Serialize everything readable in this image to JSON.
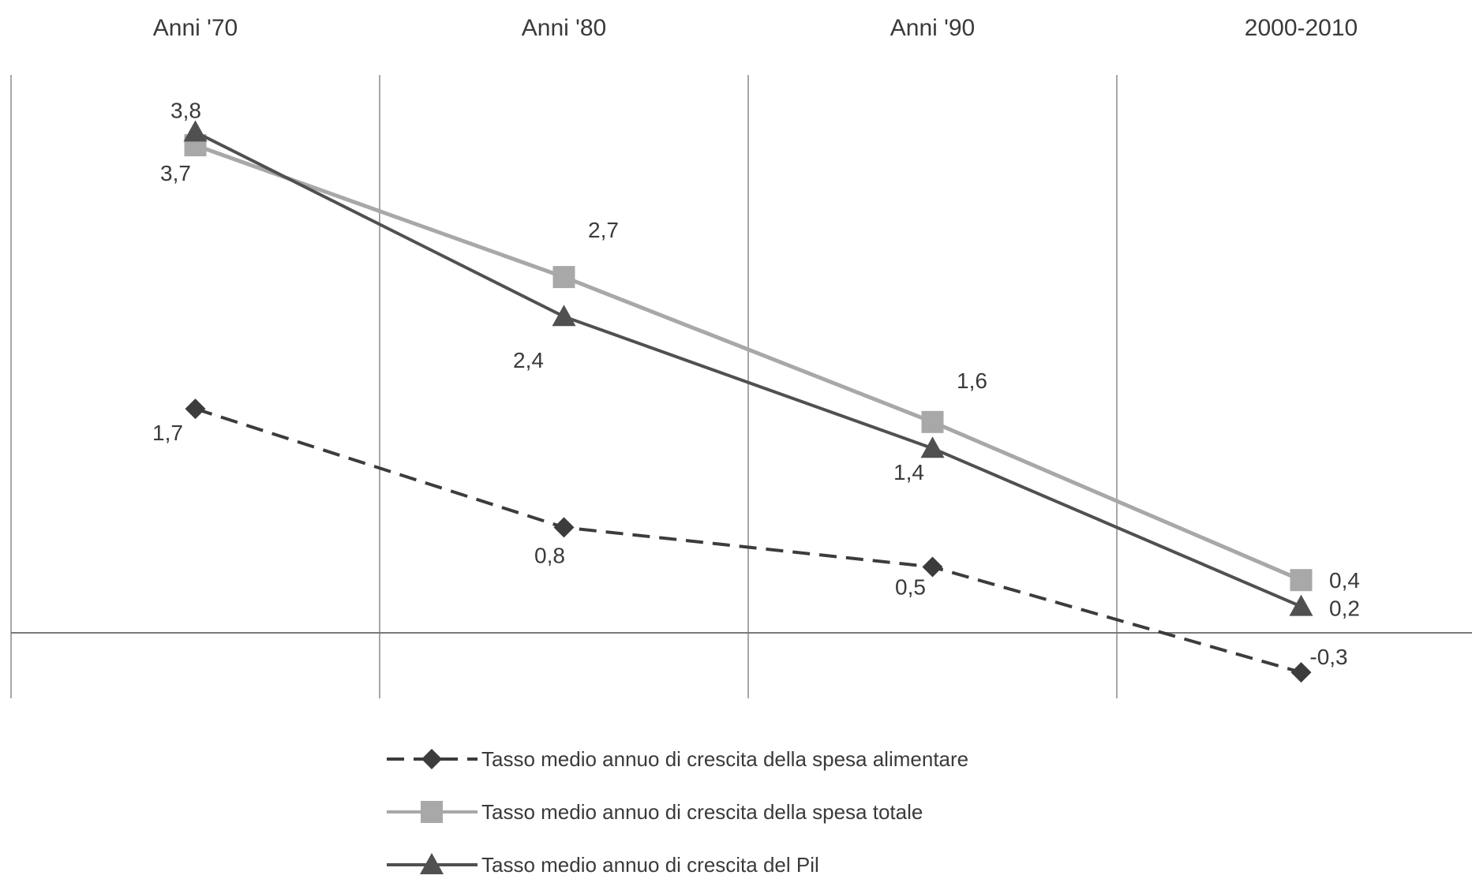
{
  "chart_data": {
    "type": "line",
    "categories": [
      "Anni '70",
      "Anni '80",
      "Anni '90",
      "2000-2010"
    ],
    "title": "",
    "xlabel": "",
    "ylabel": "",
    "ylim": [
      -0.9,
      4.6
    ],
    "grid": {
      "vertical": true,
      "horizontal": false
    },
    "legend_position": "bottom",
    "series": [
      {
        "name": "Tasso medio annuo  di crescita della spesa alimentare",
        "values": [
          1.7,
          0.8,
          0.5,
          -0.3
        ],
        "labels": [
          "1,7",
          "0,8",
          "0,5",
          "-0,3"
        ],
        "marker": "diamond",
        "line_style": "dashed",
        "color": "#3c3c3c"
      },
      {
        "name": "Tasso medio annuo  di crescita della spesa totale",
        "values": [
          3.7,
          2.7,
          1.6,
          0.4
        ],
        "labels": [
          "3,7",
          "2,7",
          "1,6",
          "0,4"
        ],
        "marker": "square",
        "line_style": "solid",
        "color": "#a8a8a8"
      },
      {
        "name": "Tasso medio annuo  di crescita del Pil",
        "values": [
          3.8,
          2.4,
          1.4,
          0.2
        ],
        "labels": [
          "3,8",
          "2,4",
          "1,4",
          "0,2"
        ],
        "marker": "triangle",
        "line_style": "solid",
        "color": "#505050"
      }
    ]
  }
}
